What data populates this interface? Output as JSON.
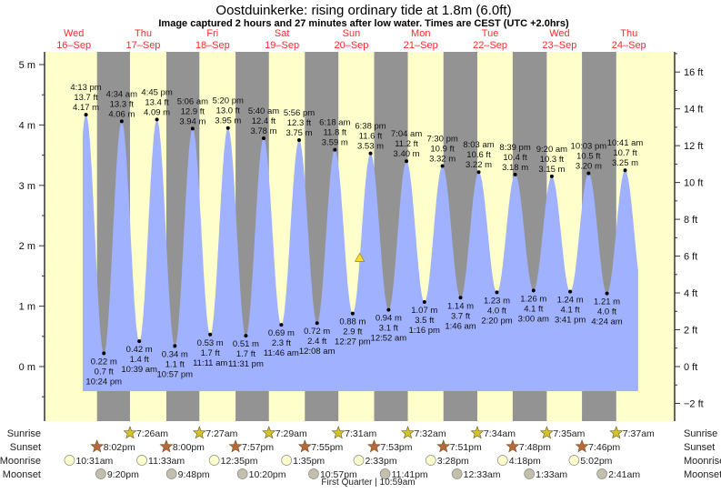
{
  "chart_data": {
    "type": "area",
    "title": "Oostduinkerke: rising  ordinary tide at 1.8m (6.0ft)",
    "subtitle": "Image captured 2 hours and 27 minutes after low water. Times are CEST (UTC +2.0hrs)",
    "days": [
      {
        "dow": "Wed",
        "date": "16–Sep"
      },
      {
        "dow": "Thu",
        "date": "17–Sep"
      },
      {
        "dow": "Fri",
        "date": "18–Sep"
      },
      {
        "dow": "Sat",
        "date": "19–Sep"
      },
      {
        "dow": "Sun",
        "date": "20–Sep"
      },
      {
        "dow": "Mon",
        "date": "21–Sep"
      },
      {
        "dow": "Tue",
        "date": "22–Sep"
      },
      {
        "dow": "Wed",
        "date": "23–Sep"
      },
      {
        "dow": "Thu",
        "date": "24–Sep"
      }
    ],
    "y_left": {
      "unit": "m",
      "ylim": [
        -0.6,
        5.2
      ],
      "ticks": [
        "0 m",
        "1 m",
        "2 m",
        "3 m",
        "4 m",
        "5 m"
      ],
      "tick_values": [
        0,
        1,
        2,
        3,
        4,
        5
      ]
    },
    "y_right": {
      "unit": "ft",
      "ticks": [
        "−2 ft",
        "0 ft",
        "2 ft",
        "4 ft",
        "6 ft",
        "8 ft",
        "10 ft",
        "12 ft",
        "14 ft",
        "16 ft"
      ],
      "tick_values": [
        -2,
        0,
        2,
        4,
        6,
        8,
        10,
        12,
        14,
        16
      ]
    },
    "extremes": [
      {
        "type": "high",
        "day": 0,
        "time": "4:13 pm",
        "ft": "13.7 ft",
        "m": "4.17 m",
        "value": 4.17
      },
      {
        "type": "low",
        "day": 0,
        "time": "10:24 pm",
        "ft": "0.7 ft",
        "m": "0.22 m",
        "value": 0.22
      },
      {
        "type": "high",
        "day": 1,
        "time": "4:34 am",
        "ft": "13.3 ft",
        "m": "4.06 m",
        "value": 4.06
      },
      {
        "type": "low",
        "day": 1,
        "time": "10:39 am",
        "ft": "1.4 ft",
        "m": "0.42 m",
        "value": 0.42
      },
      {
        "type": "high",
        "day": 1,
        "time": "4:45 pm",
        "ft": "13.4 ft",
        "m": "4.09 m",
        "value": 4.09
      },
      {
        "type": "low",
        "day": 1,
        "time": "10:57 pm",
        "ft": "1.1 ft",
        "m": "0.34 m",
        "value": 0.34
      },
      {
        "type": "high",
        "day": 2,
        "time": "5:06 am",
        "ft": "12.9 ft",
        "m": "3.94 m",
        "value": 3.94
      },
      {
        "type": "low",
        "day": 2,
        "time": "11:11 am",
        "ft": "1.7 ft",
        "m": "0.53 m",
        "value": 0.53
      },
      {
        "type": "high",
        "day": 2,
        "time": "5:20 pm",
        "ft": "13.0 ft",
        "m": "3.95 m",
        "value": 3.95
      },
      {
        "type": "low",
        "day": 2,
        "time": "11:31 pm",
        "ft": "1.7 ft",
        "m": "0.51 m",
        "value": 0.51
      },
      {
        "type": "high",
        "day": 3,
        "time": "5:40 am",
        "ft": "12.4 ft",
        "m": "3.78 m",
        "value": 3.78
      },
      {
        "type": "low",
        "day": 3,
        "time": "11:46 am",
        "ft": "2.3 ft",
        "m": "0.69 m",
        "value": 0.69
      },
      {
        "type": "high",
        "day": 3,
        "time": "5:56 pm",
        "ft": "12.3 ft",
        "m": "3.75 m",
        "value": 3.75
      },
      {
        "type": "low",
        "day": 4,
        "time": "12:08 am",
        "ft": "2.4 ft",
        "m": "0.72 m",
        "value": 0.72
      },
      {
        "type": "high",
        "day": 4,
        "time": "6:18 am",
        "ft": "11.8 ft",
        "m": "3.59 m",
        "value": 3.59
      },
      {
        "type": "low",
        "day": 4,
        "time": "12:27 pm",
        "ft": "2.9 ft",
        "m": "0.88 m",
        "value": 0.88
      },
      {
        "type": "high",
        "day": 4,
        "time": "6:38 pm",
        "ft": "11.6 ft",
        "m": "3.53 m",
        "value": 3.53
      },
      {
        "type": "low",
        "day": 5,
        "time": "12:52 am",
        "ft": "3.1 ft",
        "m": "0.94 m",
        "value": 0.94
      },
      {
        "type": "high",
        "day": 5,
        "time": "7:04 am",
        "ft": "11.2 ft",
        "m": "3.40 m",
        "value": 3.4
      },
      {
        "type": "low",
        "day": 5,
        "time": "1:16 pm",
        "ft": "3.5 ft",
        "m": "1.07 m",
        "value": 1.07
      },
      {
        "type": "high",
        "day": 5,
        "time": "7:30 pm",
        "ft": "10.9 ft",
        "m": "3.32 m",
        "value": 3.32
      },
      {
        "type": "low",
        "day": 6,
        "time": "1:46 am",
        "ft": "3.7 ft",
        "m": "1.14 m",
        "value": 1.14
      },
      {
        "type": "high",
        "day": 6,
        "time": "8:03 am",
        "ft": "10.6 ft",
        "m": "3.22 m",
        "value": 3.22
      },
      {
        "type": "low",
        "day": 6,
        "time": "2:20 pm",
        "ft": "4.0 ft",
        "m": "1.23 m",
        "value": 1.23
      },
      {
        "type": "high",
        "day": 6,
        "time": "8:39 pm",
        "ft": "10.4 ft",
        "m": "3.18 m",
        "value": 3.18
      },
      {
        "type": "low",
        "day": 7,
        "time": "3:00 am",
        "ft": "4.1 ft",
        "m": "1.26 m",
        "value": 1.26
      },
      {
        "type": "high",
        "day": 7,
        "time": "9:20 am",
        "ft": "10.3 ft",
        "m": "3.15 m",
        "value": 3.15
      },
      {
        "type": "low",
        "day": 7,
        "time": "3:41 pm",
        "ft": "4.1 ft",
        "m": "1.24 m",
        "value": 1.24
      },
      {
        "type": "high",
        "day": 7,
        "time": "10:03 pm",
        "ft": "10.5 ft",
        "m": "3.20 m",
        "value": 3.2
      },
      {
        "type": "low",
        "day": 8,
        "time": "4:24 am",
        "ft": "4.0 ft",
        "m": "1.21 m",
        "value": 1.21
      },
      {
        "type": "high",
        "day": 8,
        "time": "10:41 am",
        "ft": "10.7 ft",
        "m": "3.25 m",
        "value": 3.25
      }
    ],
    "current": {
      "hours": 110.9,
      "value": 1.8
    },
    "range_hours": [
      15.1,
      207.2
    ],
    "colors": {
      "day": "#ffffcc",
      "night": "#939393",
      "water": "#9fb1ff",
      "daylabel": "#ff2a2a",
      "sunrise": "#d4c22a",
      "sunset": "#b8683c",
      "moonrise": "#ffffcc",
      "moonset": "#c2c0ad"
    }
  },
  "rows": {
    "sunrise_label": "Sunrise",
    "sunset_label": "Sunset",
    "moonrise_label": "Moonrise",
    "moonset_label": "Moonset",
    "sunrise": [
      {
        "day": 1,
        "time": "7:26am"
      },
      {
        "day": 2,
        "time": "7:27am"
      },
      {
        "day": 3,
        "time": "7:29am"
      },
      {
        "day": 4,
        "time": "7:31am"
      },
      {
        "day": 5,
        "time": "7:32am"
      },
      {
        "day": 6,
        "time": "7:34am"
      },
      {
        "day": 7,
        "time": "7:35am"
      },
      {
        "day": 8,
        "time": "7:37am"
      }
    ],
    "sunset": [
      {
        "day": 0,
        "time": "8:02pm"
      },
      {
        "day": 1,
        "time": "8:00pm"
      },
      {
        "day": 2,
        "time": "7:57pm"
      },
      {
        "day": 3,
        "time": "7:55pm"
      },
      {
        "day": 4,
        "time": "7:53pm"
      },
      {
        "day": 5,
        "time": "7:51pm"
      },
      {
        "day": 6,
        "time": "7:48pm"
      },
      {
        "day": 7,
        "time": "7:46pm"
      }
    ],
    "moonrise": [
      {
        "day": 0,
        "time": "10:31am"
      },
      {
        "day": 1,
        "time": "11:33am"
      },
      {
        "day": 2,
        "time": "12:35pm"
      },
      {
        "day": 3,
        "time": "1:35pm"
      },
      {
        "day": 4,
        "time": "2:33pm"
      },
      {
        "day": 5,
        "time": "3:28pm"
      },
      {
        "day": 6,
        "time": "4:18pm"
      },
      {
        "day": 7,
        "time": "5:02pm"
      }
    ],
    "moonset": [
      {
        "day": 0,
        "time": "9:20pm"
      },
      {
        "day": 1,
        "time": "9:48pm"
      },
      {
        "day": 2,
        "time": "10:20pm"
      },
      {
        "day": 3,
        "time": "10:57pm"
      },
      {
        "day": 4,
        "time": "11:41pm"
      },
      {
        "day": 6,
        "time": "12:33am"
      },
      {
        "day": 7,
        "time": "1:33am"
      },
      {
        "day": 8,
        "time": "2:41am"
      }
    ],
    "moon_phase": "First Quarter | 10:59am"
  }
}
